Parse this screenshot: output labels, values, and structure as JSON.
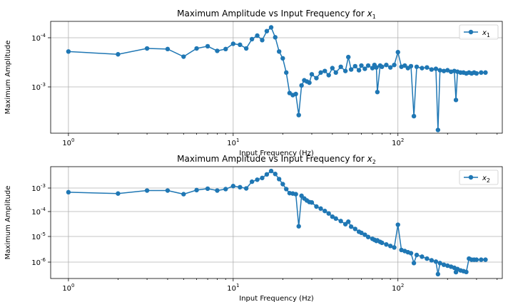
{
  "chart_data": [
    {
      "type": "line",
      "title": "Maximum Amplitude vs Input Frequency for",
      "title_var": "x",
      "title_sub": "1",
      "xlabel": "Input Frequency (Hz)",
      "ylabel": "Maximum Amplitude",
      "xscale": "log",
      "yscale": "log",
      "xlim": [
        0.78,
        430
      ],
      "ylim": [
        2e-05,
        0.0026
      ],
      "xticks": [
        "10",
        "10",
        "10"
      ],
      "xtick_exp": [
        "0",
        "1",
        "2"
      ],
      "yticks": [
        "10",
        "10"
      ],
      "ytick_exp": [
        "-4",
        "-3"
      ],
      "grid": true,
      "legend": "top-right",
      "color": "#1f77b4",
      "series": [
        {
          "name": "x",
          "name_sub": "1",
          "x": [
            1,
            2,
            3,
            4,
            5,
            6,
            7,
            8,
            9,
            10,
            11,
            12,
            13,
            14,
            15,
            16,
            17,
            18,
            19,
            20,
            21,
            22,
            23,
            24,
            25,
            26,
            27,
            28,
            29,
            30,
            32,
            34,
            36,
            38,
            40,
            42,
            45,
            48,
            50,
            52,
            55,
            58,
            60,
            63,
            66,
            70,
            72,
            74,
            75,
            78,
            80,
            85,
            90,
            95,
            100,
            105,
            110,
            115,
            120,
            125,
            130,
            140,
            150,
            160,
            170,
            175,
            180,
            190,
            200,
            210,
            220,
            225,
            230,
            240,
            250,
            260,
            270,
            280,
            290,
            300,
            320,
            340
          ],
          "y": [
            0.0007,
            0.00062,
            0.0008,
            0.00078,
            0.00056,
            0.0008,
            0.00088,
            0.00072,
            0.00078,
            0.00098,
            0.00094,
            0.0008,
            0.0012,
            0.0014,
            0.00115,
            0.0017,
            0.002,
            0.0013,
            0.0007,
            0.00052,
            0.00028,
            0.000115,
            0.000105,
            0.00011,
            4.4e-05,
            0.00016,
            0.0002,
            0.00019,
            0.00018,
            0.00026,
            0.00022,
            0.00028,
            0.0003,
            0.00025,
            0.00034,
            0.00028,
            0.00036,
            0.0003,
            0.00055,
            0.00032,
            0.00037,
            0.00031,
            0.00038,
            0.00033,
            0.00038,
            0.00034,
            0.00039,
            0.00035,
            0.00012,
            0.00038,
            0.00036,
            0.00039,
            0.00035,
            0.00039,
            0.00068,
            0.00036,
            0.00038,
            0.00034,
            0.00037,
            4.2e-05,
            0.00036,
            0.00034,
            0.00035,
            0.00032,
            0.00033,
            2.3e-05,
            0.00031,
            0.0003,
            0.00031,
            0.00029,
            0.0003,
            8.5e-05,
            0.00029,
            0.00028,
            0.00028,
            0.00027,
            0.00028,
            0.00027,
            0.00028,
            0.00027,
            0.00028,
            0.00028
          ]
        }
      ]
    },
    {
      "type": "line",
      "title": "Maximum Amplitude vs Input Frequency for",
      "title_var": "x",
      "title_sub": "2",
      "xlabel": "Input Frequency (Hz)",
      "ylabel": "Maximum Amplitude",
      "xscale": "log",
      "yscale": "log",
      "xlim": [
        0.78,
        430
      ],
      "ylim": [
        4e-07,
        0.0058
      ],
      "xticks": [
        "10",
        "10",
        "10"
      ],
      "xtick_exp": [
        "0",
        "1",
        "2"
      ],
      "yticks": [
        "10",
        "10",
        "10",
        "10"
      ],
      "ytick_exp": [
        "-6",
        "-5",
        "-4",
        "-3"
      ],
      "grid": true,
      "legend": "top-right",
      "color": "#1f77b4",
      "series": [
        {
          "name": "x",
          "name_sub": "2",
          "x": [
            1,
            2,
            3,
            4,
            5,
            6,
            7,
            8,
            9,
            10,
            11,
            12,
            13,
            14,
            15,
            16,
            17,
            18,
            19,
            20,
            21,
            22,
            23,
            24,
            25,
            26,
            27,
            28,
            29,
            30,
            32,
            34,
            36,
            38,
            40,
            42,
            45,
            48,
            50,
            52,
            55,
            58,
            60,
            63,
            66,
            70,
            72,
            74,
            75,
            78,
            80,
            85,
            90,
            95,
            100,
            105,
            110,
            115,
            120,
            125,
            130,
            140,
            150,
            160,
            170,
            175,
            180,
            190,
            200,
            210,
            220,
            225,
            230,
            240,
            250,
            260,
            270,
            280,
            290,
            300,
            320,
            340
          ],
          "y": [
            0.00065,
            0.00058,
            0.00075,
            0.00075,
            0.00055,
            0.00078,
            0.00088,
            0.00075,
            0.00085,
            0.0011,
            0.001,
            0.0009,
            0.0016,
            0.0019,
            0.0022,
            0.003,
            0.004,
            0.0031,
            0.002,
            0.0013,
            0.00085,
            0.0006,
            0.00058,
            0.00055,
            3.5e-05,
            0.00048,
            0.00038,
            0.00032,
            0.00028,
            0.00027,
            0.00019,
            0.00016,
            0.00013,
            0.000105,
            8e-05,
            6.8e-05,
            5.5e-05,
            4.2e-05,
            5.2e-05,
            3.4e-05,
            2.8e-05,
            2.2e-05,
            2e-05,
            1.7e-05,
            1.4e-05,
            1.2e-05,
            1.1e-05,
            1e-05,
            1.05e-05,
            9.2e-06,
            8.5e-06,
            7.4e-06,
            6.5e-06,
            5.7e-06,
            4e-05,
            4.6e-06,
            4.2e-06,
            3.8e-06,
            3.5e-06,
            1.5e-06,
            3e-06,
            2.6e-06,
            2.2e-06,
            1.9e-06,
            1.7e-06,
            5.8e-07,
            1.5e-06,
            1.3e-06,
            1.2e-06,
            1.1e-06,
            1e-06,
            6.9e-07,
            9e-07,
            8e-07,
            7.5e-07,
            7e-07,
            2.2e-06,
            2e-06,
            2e-06,
            2e-06,
            2e-06,
            2e-06
          ]
        }
      ]
    }
  ]
}
